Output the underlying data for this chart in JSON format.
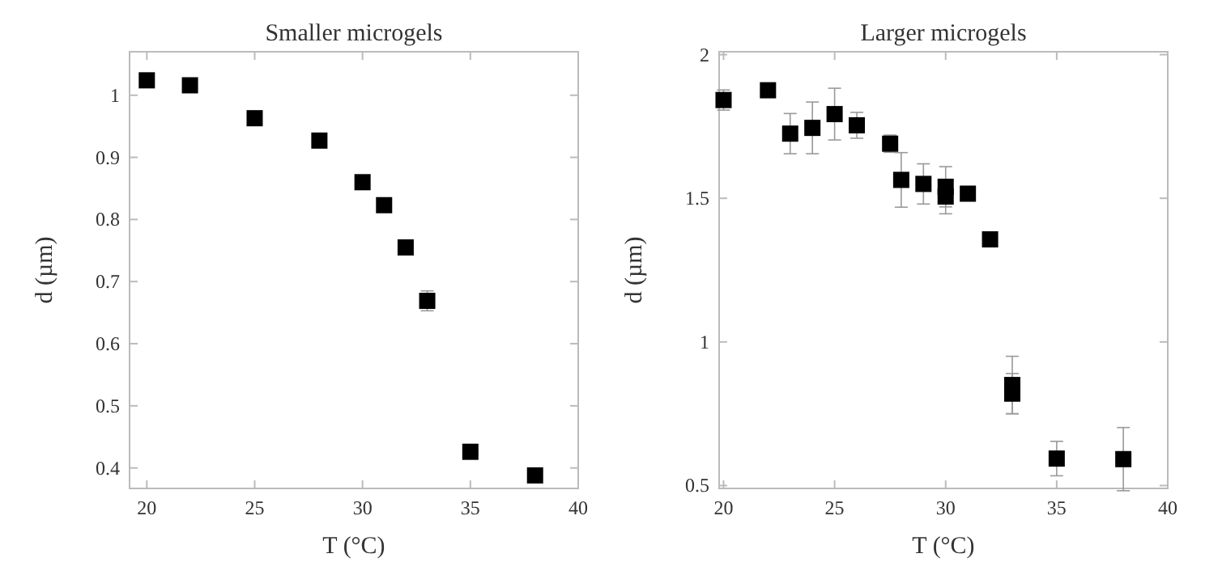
{
  "chart_data": [
    {
      "type": "scatter",
      "title": "Smaller microgels",
      "xlabel": "T (°C)",
      "ylabel": "d (µm)",
      "marker": "square",
      "xlim": [
        19.2,
        40
      ],
      "ylim": [
        0.367,
        1.07
      ],
      "xticks": [
        20,
        25,
        30,
        35,
        40
      ],
      "yticks": [
        0.4,
        0.5,
        0.6,
        0.7,
        0.8,
        0.9,
        1
      ],
      "grid": false,
      "series": [
        {
          "color": "#000000",
          "x": [
            20,
            22,
            25,
            28,
            30,
            31,
            32,
            33,
            35,
            38
          ],
          "values": [
            1.024,
            1.016,
            0.963,
            0.927,
            0.86,
            0.823,
            0.755,
            0.669,
            0.426,
            0.388
          ],
          "errors": [
            0.008,
            0.008,
            0.006,
            0.006,
            0.006,
            0.006,
            0.008,
            0.016,
            0.01,
            0.006
          ]
        }
      ]
    },
    {
      "type": "scatter",
      "title": "Larger microgels",
      "xlabel": "T (°C)",
      "ylabel": "d (µm)",
      "marker": "square",
      "xlim": [
        19.8,
        40
      ],
      "ylim": [
        0.49,
        2.01
      ],
      "xticks": [
        20,
        25,
        30,
        35,
        40
      ],
      "yticks": [
        0.5,
        1,
        1.5,
        2
      ],
      "grid": false,
      "series": [
        {
          "color": "#000000",
          "x": [
            20,
            22,
            23,
            24,
            25,
            26,
            27.5,
            28,
            29,
            30,
            30,
            31,
            32,
            33,
            33,
            35,
            38
          ],
          "values": [
            1.842,
            1.876,
            1.725,
            1.745,
            1.793,
            1.754,
            1.69,
            1.564,
            1.55,
            1.54,
            1.506,
            1.516,
            1.357,
            0.85,
            0.82,
            0.594,
            0.592
          ],
          "errors": [
            0.035,
            0.01,
            0.07,
            0.09,
            0.09,
            0.045,
            0.03,
            0.095,
            0.07,
            0.07,
            0.06,
            0.01,
            0.01,
            0.1,
            0.07,
            0.06,
            0.11
          ]
        }
      ]
    }
  ]
}
